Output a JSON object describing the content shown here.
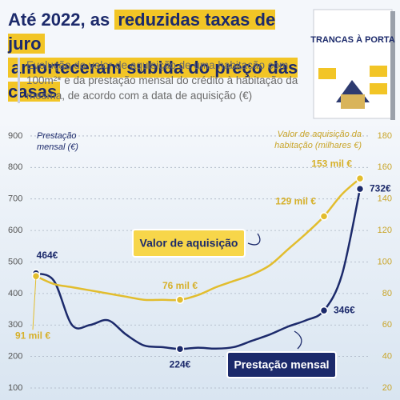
{
  "header": {
    "title_start": "Até 2022, as",
    "title_highlight_1": "reduzidas taxas de juro",
    "title_highlight_2": "amorteceram subida do preço das casas",
    "subtitle": "Evolução do valor de aquisição de uma habitação com 100m²* e da prestação mensal do crédito à habitação da mesma, de acordo com a data de aquisição (€)"
  },
  "book": {
    "title": "TRANCAS À PORTA"
  },
  "chart_data": {
    "type": "line",
    "y_label": "Prestação mensal (€)",
    "y2_label": "Valor de aquisição da habitação (milhares €)",
    "categories": [
      null,
      null,
      null,
      null,
      null,
      null,
      null,
      null,
      null,
      null,
      null,
      null,
      null,
      null,
      null,
      null,
      null,
      null,
      null
    ],
    "ylim": [
      95,
      910
    ],
    "yticks": [
      100,
      200,
      300,
      400,
      500,
      600,
      700,
      800,
      900
    ],
    "y2lim": [
      19,
      182
    ],
    "y2ticks": [
      20,
      40,
      60,
      80,
      100,
      120,
      140,
      160,
      180
    ],
    "grid": true,
    "series": [
      {
        "name": "Prestação mensal",
        "color": "#1c2a6b",
        "values": [
          464,
          440,
          300,
          300,
          315,
          270,
          235,
          230,
          224,
          228,
          225,
          230,
          250,
          270,
          295,
          315,
          346,
          460,
          732
        ],
        "value_labels": [
          "464€",
          null,
          null,
          null,
          null,
          null,
          null,
          null,
          "224€",
          null,
          null,
          null,
          null,
          null,
          null,
          null,
          "346€",
          null,
          "732€"
        ]
      },
      {
        "name": "Valor de aquisição",
        "color": "#e2bd2e",
        "axis": "y2",
        "values": [
          91,
          86,
          84,
          82,
          80,
          78,
          76,
          76,
          76,
          79,
          84,
          88,
          92,
          98,
          108,
          118,
          129,
          143,
          153
        ],
        "value_labels": [
          "91 mil €",
          null,
          null,
          null,
          null,
          null,
          null,
          null,
          "76 mil €",
          null,
          null,
          null,
          null,
          null,
          null,
          null,
          "129 mil €",
          null,
          "153 mil €"
        ]
      }
    ]
  }
}
